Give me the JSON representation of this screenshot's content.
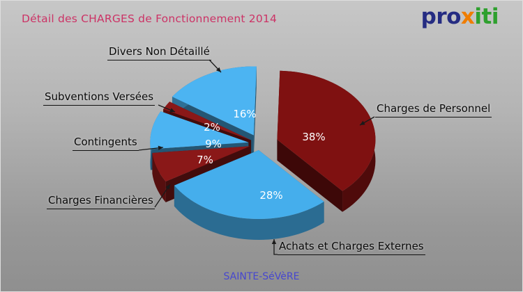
{
  "page": {
    "title": "Détail des CHARGES de Fonctionnement 2014",
    "footer_link": "SAINTE-SéVèRE"
  },
  "logo": {
    "part1": "pro",
    "part2": "x",
    "part3": "iti"
  },
  "theme": {
    "title_color": "#cc3366",
    "footer_color": "#4747cf",
    "logo_blue": "#252c82",
    "logo_orange": "#ef7d00",
    "logo_green": "#2fa02f",
    "label_color": "#0a0a0a",
    "percent_text_color": "#ffffff"
  },
  "chart_data": {
    "type": "pie",
    "style": "3d-exploded",
    "title": "Détail des CHARGES de Fonctionnement 2014",
    "unit": "%",
    "total": 100,
    "legend_position": "callout-labels",
    "slices": [
      {
        "label": "Divers Non Détaillé",
        "value": 16,
        "color": "#4cb4f2"
      },
      {
        "label": "Charges de Personnel",
        "value": 38,
        "color": "#7f1111"
      },
      {
        "label": "Achats et Charges Externes",
        "value": 28,
        "color": "#45aeec"
      },
      {
        "label": "Charges Financières",
        "value": 7,
        "color": "#8a1818"
      },
      {
        "label": "Contingents",
        "value": 9,
        "color": "#4cb4f2"
      },
      {
        "label": "Subventions Versées",
        "value": 2,
        "color": "#8a1818"
      }
    ]
  }
}
